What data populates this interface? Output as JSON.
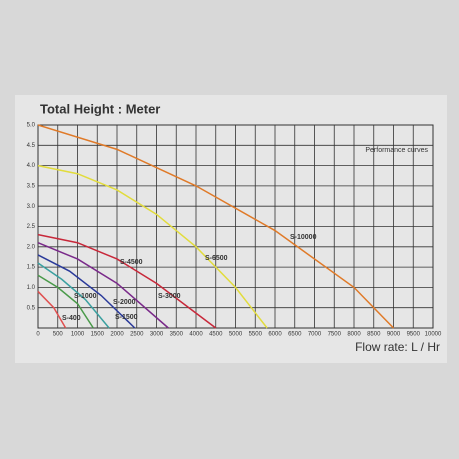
{
  "chart_data": {
    "type": "line",
    "title": "Total Height : Meter",
    "xlabel": "Flow rate: L / Hr",
    "legend_title": "Performance curves",
    "xlim": [
      0,
      10000
    ],
    "ylim": [
      0,
      5
    ],
    "xticks": [
      0,
      500,
      1000,
      1500,
      2000,
      2500,
      3000,
      3500,
      4000,
      4500,
      5000,
      5500,
      6000,
      6500,
      7000,
      7500,
      8000,
      8500,
      9000,
      9500,
      10000
    ],
    "yticks": [
      0.5,
      {
        "value": 1,
        "label": "1.0"
      },
      1.5,
      {
        "value": 2,
        "label": "2.0"
      },
      2.5,
      {
        "value": 3,
        "label": "3.0"
      },
      3.5,
      {
        "value": 4,
        "label": "4.0"
      },
      4.5,
      {
        "value": 5,
        "label": "5.0"
      }
    ],
    "grid": true,
    "series": [
      {
        "name": "S-10000",
        "color": "#e07a28",
        "x": [
          0,
          2000,
          4000,
          6000,
          8000,
          9000
        ],
        "values": [
          5.0,
          4.4,
          3.5,
          2.4,
          1.0,
          0
        ]
      },
      {
        "name": "S-6500",
        "color": "#e2dc3c",
        "x": [
          0,
          1000,
          2000,
          3000,
          4000,
          5000,
          5800
        ],
        "values": [
          4.0,
          3.8,
          3.4,
          2.8,
          2.0,
          1.0,
          0
        ]
      },
      {
        "name": "S-4500",
        "color": "#c8283a",
        "x": [
          0,
          1000,
          2000,
          3000,
          4500
        ],
        "values": [
          2.3,
          2.1,
          1.7,
          1.1,
          0
        ]
      },
      {
        "name": "S-3000",
        "color": "#7a2a8a",
        "x": [
          0,
          1000,
          2000,
          3300
        ],
        "values": [
          2.1,
          1.7,
          1.1,
          0
        ]
      },
      {
        "name": "S-2000",
        "color": "#2a3a9a",
        "x": [
          0,
          800,
          1600,
          2450
        ],
        "values": [
          1.8,
          1.4,
          0.8,
          0
        ]
      },
      {
        "name": "S-1500",
        "color": "#3aa0a0",
        "x": [
          0,
          600,
          1200,
          1800
        ],
        "values": [
          1.6,
          1.2,
          0.7,
          0
        ]
      },
      {
        "name": "S-1000",
        "color": "#4a9a4a",
        "x": [
          0,
          500,
          1000,
          1400
        ],
        "values": [
          1.3,
          1.0,
          0.6,
          0
        ]
      },
      {
        "name": "S-400",
        "color": "#e05050",
        "x": [
          0,
          400,
          700
        ],
        "values": [
          0.9,
          0.5,
          0
        ]
      }
    ]
  }
}
